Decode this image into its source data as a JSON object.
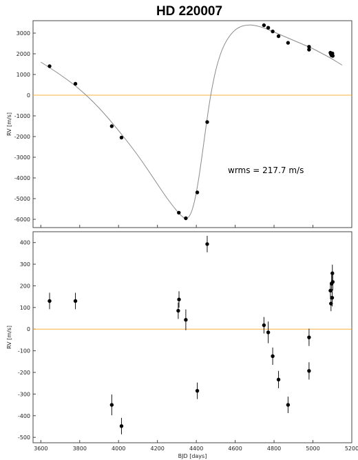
{
  "title": "HD 220007",
  "chart_data": [
    {
      "type": "scatter",
      "panel": "top",
      "ylabel": "RV [m/s]",
      "xlim": [
        3560,
        5200
      ],
      "ylim": [
        -6400,
        3600
      ],
      "yticks": [
        3000,
        2000,
        1000,
        0,
        -1000,
        -2000,
        -3000,
        -4000,
        -5000,
        -6000
      ],
      "annotation": "wrms = 217.7 m/s",
      "zero_line_color": "#f5b041",
      "points": [
        {
          "x": 3645,
          "y": 1400
        },
        {
          "x": 3778,
          "y": 550
        },
        {
          "x": 3965,
          "y": -1500
        },
        {
          "x": 4015,
          "y": -2050
        },
        {
          "x": 4310,
          "y": -5680
        },
        {
          "x": 4346,
          "y": -5950
        },
        {
          "x": 4405,
          "y": -4700
        },
        {
          "x": 4456,
          "y": -1300
        },
        {
          "x": 4748,
          "y": 3380
        },
        {
          "x": 4770,
          "y": 3260
        },
        {
          "x": 4793,
          "y": 3080
        },
        {
          "x": 4823,
          "y": 2850
        },
        {
          "x": 4872,
          "y": 2530
        },
        {
          "x": 4980,
          "y": 2340
        },
        {
          "x": 4980,
          "y": 2200
        },
        {
          "x": 5090,
          "y": 2050
        },
        {
          "x": 5093,
          "y": 1980
        },
        {
          "x": 5096,
          "y": 1920
        },
        {
          "x": 5099,
          "y": 1960
        },
        {
          "x": 5100,
          "y": 2020
        },
        {
          "x": 5102,
          "y": 1900
        }
      ],
      "model_curve": {
        "x": [
          3600,
          3700,
          3800,
          3900,
          4000,
          4100,
          4200,
          4250,
          4300,
          4330,
          4350,
          4370,
          4390,
          4410,
          4430,
          4450,
          4470,
          4490,
          4510,
          4540,
          4580,
          4620,
          4660,
          4700,
          4750,
          4800,
          4850,
          4900,
          4950,
          5000,
          5050,
          5100,
          5150
        ],
        "y": [
          1600,
          1000,
          300,
          -600,
          -1700,
          -2900,
          -4300,
          -5000,
          -5600,
          -5900,
          -5980,
          -5800,
          -5200,
          -4200,
          -2900,
          -1500,
          -200,
          800,
          1600,
          2400,
          3000,
          3300,
          3400,
          3380,
          3250,
          3050,
          2850,
          2650,
          2450,
          2250,
          2000,
          1750,
          1450
        ]
      }
    },
    {
      "type": "scatter",
      "panel": "bottom",
      "xlabel": "BJD [days]",
      "ylabel": "RV [m/s]",
      "xlim": [
        3560,
        5200
      ],
      "ylim": [
        -525,
        450
      ],
      "xticks": [
        3600,
        3800,
        4000,
        4200,
        4400,
        4600,
        4800,
        5000,
        5200
      ],
      "yticks": [
        400,
        300,
        200,
        100,
        0,
        -100,
        -200,
        -300,
        -400,
        -500
      ],
      "zero_line_color": "#f5b041",
      "points": [
        {
          "x": 3645,
          "y": 130,
          "err": 38
        },
        {
          "x": 3778,
          "y": 130,
          "err": 38
        },
        {
          "x": 3965,
          "y": -350,
          "err": 48
        },
        {
          "x": 4015,
          "y": -448,
          "err": 38
        },
        {
          "x": 4307,
          "y": 85,
          "err": 38
        },
        {
          "x": 4311,
          "y": 137,
          "err": 38
        },
        {
          "x": 4346,
          "y": 43,
          "err": 48
        },
        {
          "x": 4405,
          "y": -285,
          "err": 38
        },
        {
          "x": 4456,
          "y": 393,
          "err": 38
        },
        {
          "x": 4748,
          "y": 18,
          "err": 38
        },
        {
          "x": 4770,
          "y": -15,
          "err": 50
        },
        {
          "x": 4793,
          "y": -125,
          "err": 40
        },
        {
          "x": 4823,
          "y": -233,
          "err": 40
        },
        {
          "x": 4872,
          "y": -350,
          "err": 38
        },
        {
          "x": 4980,
          "y": -38,
          "err": 40
        },
        {
          "x": 4980,
          "y": -193,
          "err": 40
        },
        {
          "x": 5090,
          "y": 178,
          "err": 40
        },
        {
          "x": 5093,
          "y": 118,
          "err": 35
        },
        {
          "x": 5096,
          "y": 210,
          "err": 40
        },
        {
          "x": 5099,
          "y": 145,
          "err": 40
        },
        {
          "x": 5100,
          "y": 258,
          "err": 40
        },
        {
          "x": 5102,
          "y": 218,
          "err": 40
        }
      ]
    }
  ]
}
